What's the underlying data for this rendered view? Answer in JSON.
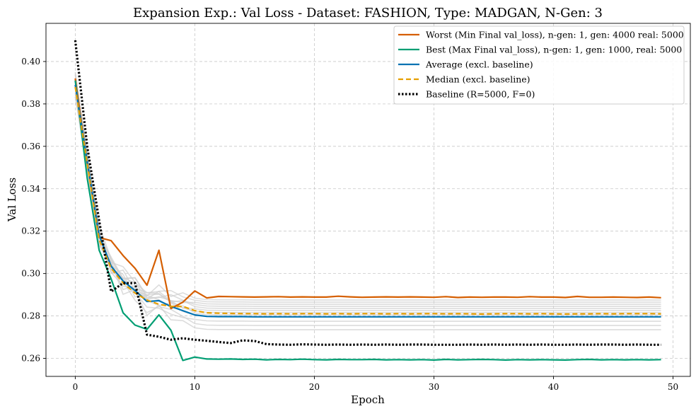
{
  "chart_data": {
    "type": "line",
    "title": "Expansion Exp.: Val Loss - Dataset: FASHION, Type: MADGAN, N-Gen: 3",
    "xlabel": "Epoch",
    "ylabel": "Val Loss",
    "xlim": [
      -2.45,
      51.45
    ],
    "ylim": [
      0.2515,
      0.418
    ],
    "xticks": [
      0,
      10,
      20,
      30,
      40,
      50
    ],
    "yticks": [
      0.26,
      0.28,
      0.3,
      0.32,
      0.34,
      0.36,
      0.38,
      0.4
    ],
    "xtick_labels": [
      "0",
      "10",
      "20",
      "30",
      "40",
      "50"
    ],
    "ytick_labels": [
      "0.26",
      "0.28",
      "0.30",
      "0.32",
      "0.34",
      "0.36",
      "0.38",
      "0.40"
    ],
    "grid": true,
    "legend_position": "top-right",
    "background_runs_color": "#d0d0d0",
    "background_runs_finals": [
      0.2735,
      0.2755,
      0.2775,
      0.2795,
      0.2805,
      0.2815,
      0.2825,
      0.2835,
      0.2845,
      0.2855,
      0.2865,
      0.2875
    ],
    "series": [
      {
        "name": "Worst (Min Final val_loss), n-gen: 1, gen: 4000 real: 5000",
        "color": "#d55e00",
        "style": "solid",
        "values": [
          0.392,
          0.352,
          0.317,
          0.3155,
          0.3085,
          0.3025,
          0.2945,
          0.311,
          0.2835,
          0.2865,
          0.2918,
          0.2885,
          0.2892,
          0.2891,
          0.289,
          0.2889,
          0.289,
          0.2891,
          0.2889,
          0.289,
          0.2889,
          0.2889,
          0.2893,
          0.289,
          0.2888,
          0.2889,
          0.289,
          0.2889,
          0.289,
          0.2889,
          0.2888,
          0.2891,
          0.2887,
          0.2889,
          0.2888,
          0.2889,
          0.2889,
          0.2888,
          0.2891,
          0.2889,
          0.2889,
          0.2887,
          0.2892,
          0.2888,
          0.2888,
          0.2889,
          0.2888,
          0.2887,
          0.2889,
          0.2886
        ]
      },
      {
        "name": "Best (Max Final val_loss), n-gen: 1, gen: 1000, real: 5000",
        "color": "#009e73",
        "style": "solid",
        "values": [
          0.391,
          0.345,
          0.311,
          0.2975,
          0.2815,
          0.2757,
          0.2737,
          0.2805,
          0.2733,
          0.259,
          0.2606,
          0.2597,
          0.2596,
          0.2597,
          0.2595,
          0.2596,
          0.2593,
          0.2595,
          0.2594,
          0.2596,
          0.2594,
          0.2593,
          0.2595,
          0.2594,
          0.2594,
          0.2595,
          0.2593,
          0.2594,
          0.2593,
          0.2594,
          0.2592,
          0.2595,
          0.2593,
          0.2594,
          0.2595,
          0.2594,
          0.2592,
          0.2594,
          0.2593,
          0.2594,
          0.2593,
          0.2592,
          0.2594,
          0.2595,
          0.2593,
          0.2594,
          0.2593,
          0.2594,
          0.2593,
          0.2594
        ]
      },
      {
        "name": "Average (excl. baseline)",
        "color": "#0072b2",
        "style": "solid",
        "values": [
          0.389,
          0.353,
          0.318,
          0.3035,
          0.2965,
          0.292,
          0.2868,
          0.2872,
          0.2845,
          0.2825,
          0.2805,
          0.2798,
          0.2797,
          0.2797,
          0.2797,
          0.2796,
          0.2796,
          0.2796,
          0.2796,
          0.2796,
          0.2796,
          0.2796,
          0.2796,
          0.2796,
          0.2796,
          0.2796,
          0.2796,
          0.2796,
          0.2796,
          0.2796,
          0.2796,
          0.2796,
          0.2796,
          0.2796,
          0.2796,
          0.2796,
          0.2796,
          0.2796,
          0.2796,
          0.2796,
          0.2796,
          0.2796,
          0.2796,
          0.2796,
          0.2796,
          0.2796,
          0.2796,
          0.2796,
          0.2796,
          0.2796
        ]
      },
      {
        "name": "Median (excl. baseline)",
        "color": "#e69f00",
        "style": "dashed",
        "values": [
          0.388,
          0.352,
          0.316,
          0.3025,
          0.2955,
          0.2908,
          0.2875,
          0.2855,
          0.2845,
          0.2845,
          0.2825,
          0.2815,
          0.2813,
          0.2812,
          0.2811,
          0.2811,
          0.281,
          0.2811,
          0.281,
          0.2811,
          0.2811,
          0.281,
          0.2811,
          0.281,
          0.2811,
          0.2811,
          0.281,
          0.2811,
          0.281,
          0.2811,
          0.2811,
          0.281,
          0.2811,
          0.281,
          0.2809,
          0.281,
          0.2811,
          0.2811,
          0.281,
          0.2811,
          0.281,
          0.2809,
          0.281,
          0.281,
          0.2811,
          0.281,
          0.2811,
          0.2811,
          0.2811,
          0.281
        ]
      },
      {
        "name": "Baseline (R=5000, F=0)",
        "color": "#000000",
        "style": "dotted",
        "values": [
          0.41,
          0.36,
          0.325,
          0.2915,
          0.2955,
          0.2955,
          0.2712,
          0.2702,
          0.2688,
          0.2695,
          0.2688,
          0.2683,
          0.2677,
          0.2672,
          0.2685,
          0.2682,
          0.2667,
          0.2665,
          0.2664,
          0.2666,
          0.2665,
          0.2664,
          0.2665,
          0.2664,
          0.2665,
          0.2664,
          0.2665,
          0.2664,
          0.2665,
          0.2665,
          0.2664,
          0.2664,
          0.2664,
          0.2665,
          0.2664,
          0.2665,
          0.2664,
          0.2665,
          0.2664,
          0.2665,
          0.2664,
          0.2664,
          0.2665,
          0.2664,
          0.2665,
          0.2665,
          0.2664,
          0.2665,
          0.2664,
          0.2664
        ]
      }
    ]
  }
}
